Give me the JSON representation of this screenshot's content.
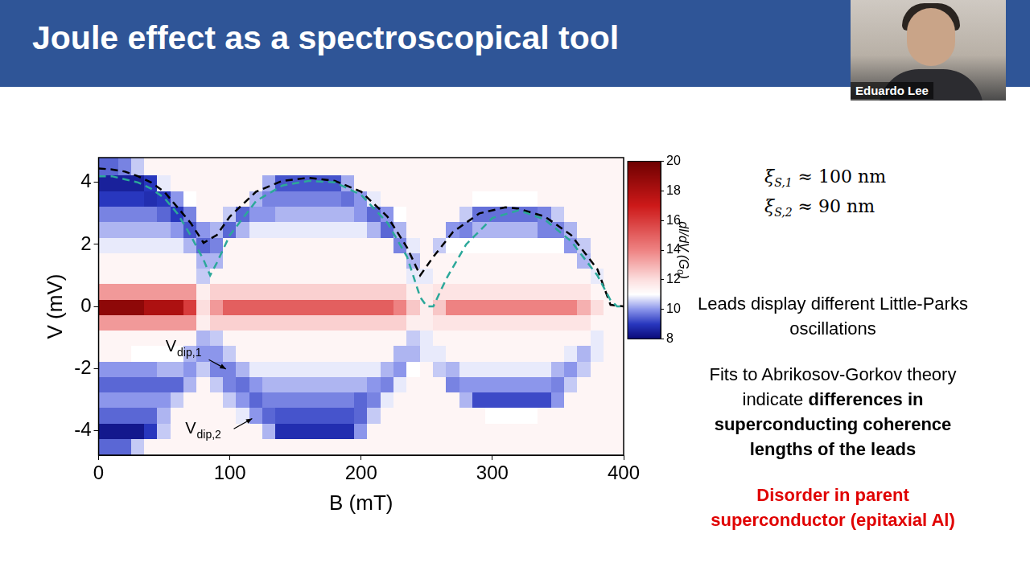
{
  "slide": {
    "title": "Joule effect as a spectroscopical tool",
    "speaker": "Eduardo Lee",
    "coherence_lengths": [
      {
        "symbol": "ξ",
        "subscript": "S,1",
        "relation": "≈",
        "value": 100,
        "unit": "nm"
      },
      {
        "symbol": "ξ",
        "subscript": "S,2",
        "relation": "≈",
        "value": 90,
        "unit": "nm"
      }
    ],
    "paragraphs": [
      [
        {
          "text": "Leads display different Little-Parks oscillations",
          "bold": false
        }
      ],
      [
        {
          "text": "Fits to Abrikosov-Gorkov theory indicate ",
          "bold": false
        },
        {
          "text": "differences in superconducting coherence lengths of the leads",
          "bold": true
        }
      ],
      [
        {
          "text": "Disorder in parent superconductor (epitaxial Al)",
          "bold": true,
          "color": "#e00000"
        }
      ]
    ]
  },
  "chart_data": {
    "type": "heatmap",
    "x_label": "B (mT)",
    "y_label": "V (mV)",
    "xlim": [
      0,
      400
    ],
    "xticks": [
      0,
      100,
      200,
      300,
      400
    ],
    "ylim": [
      -4.8,
      4.8
    ],
    "yticks": [
      -4,
      -2,
      0,
      2,
      4
    ],
    "grid": false,
    "legend": false,
    "annotations": [
      {
        "text": "V",
        "subscript": "dip,1"
      },
      {
        "text": "V",
        "subscript": "dip,2"
      }
    ],
    "series": [
      {
        "type": "line",
        "color": "#2ca89a",
        "line_style": "dashed",
        "x": [
          0,
          10,
          20,
          30,
          40,
          50,
          60,
          70,
          80,
          85,
          90,
          100,
          120,
          140,
          160,
          180,
          200,
          220,
          235,
          245,
          250,
          255,
          265,
          280,
          300,
          320,
          340,
          360,
          380,
          390,
          395,
          400
        ],
        "values": [
          4.2,
          4.2,
          4.1,
          4.0,
          3.8,
          3.5,
          3.0,
          2.3,
          1.5,
          1.0,
          1.4,
          2.3,
          3.4,
          3.9,
          4.05,
          4.0,
          3.6,
          2.7,
          1.6,
          0.3,
          0,
          0,
          0.9,
          2.0,
          2.85,
          3.1,
          2.8,
          2.1,
          1.0,
          0.2,
          0,
          0
        ]
      },
      {
        "type": "line",
        "color": "#000000",
        "line_style": "dashed",
        "x": [
          0,
          10,
          20,
          30,
          40,
          50,
          60,
          70,
          80,
          90,
          100,
          120,
          140,
          160,
          180,
          200,
          220,
          235,
          245,
          255,
          270,
          290,
          310,
          320,
          340,
          360,
          380,
          390,
          400
        ],
        "values": [
          4.45,
          4.42,
          4.35,
          4.2,
          4.0,
          3.7,
          3.2,
          2.7,
          2.05,
          2.3,
          2.9,
          3.7,
          4.05,
          4.15,
          4.05,
          3.7,
          2.9,
          1.9,
          1.0,
          1.6,
          2.4,
          3.0,
          3.2,
          3.15,
          2.9,
          2.3,
          1.2,
          0.05,
          0
        ]
      }
    ],
    "heatmap": {
      "x": [
        0,
        10,
        20,
        30,
        40,
        50,
        60,
        70,
        80,
        90,
        100,
        110,
        120,
        130,
        140,
        150,
        160,
        170,
        180,
        190,
        200,
        210,
        220,
        230,
        240,
        250,
        260,
        270,
        280,
        290,
        300,
        310,
        320,
        330,
        340,
        350,
        360,
        370,
        380,
        390,
        400
      ],
      "y": [
        -4.5,
        -4.0,
        -3.5,
        -3.0,
        -2.5,
        -2.0,
        -1.5,
        -1.0,
        -0.5,
        0,
        0.5,
        1.0,
        1.5,
        2.0,
        2.5,
        3.0,
        3.5,
        4.0,
        4.5
      ],
      "z": [
        [
          9.5,
          9.5,
          9.5,
          10.5,
          11.3,
          11.3,
          11.3,
          11.3,
          11.3,
          11.3,
          11.3,
          11.3,
          11.3,
          11.3,
          11.3,
          11.3,
          11.3,
          11.3,
          11.3,
          11.3,
          11.3,
          11.3,
          11.3,
          11.3,
          11.3,
          11.3,
          11.3,
          11.3,
          11.3,
          11.3,
          11.3,
          11.3,
          11.3,
          11.3,
          11.3,
          11.3,
          11.3,
          11.3,
          11.3,
          11.3,
          11.3
        ],
        [
          8.3,
          8.3,
          8.3,
          8.3,
          9.0,
          10.5,
          11.3,
          11.3,
          11.3,
          11.3,
          11.3,
          11.3,
          11.3,
          10.3,
          8.8,
          8.8,
          8.8,
          8.8,
          8.8,
          8.8,
          10.0,
          11.3,
          11.3,
          11.3,
          11.3,
          11.3,
          11.3,
          11.3,
          11.3,
          11.3,
          11.3,
          11.3,
          11.3,
          11.3,
          11.3,
          11.3,
          11.3,
          11.3,
          11.3,
          11.3,
          11.3
        ],
        [
          9.5,
          9.5,
          9.5,
          9.5,
          9.5,
          10.3,
          11.3,
          11.3,
          11.3,
          11.3,
          11.3,
          10.8,
          10.0,
          9.5,
          9.3,
          9.3,
          9.3,
          9.3,
          9.3,
          9.3,
          9.5,
          10.5,
          11.3,
          11.3,
          11.3,
          11.3,
          11.3,
          11.3,
          11.3,
          11.3,
          11.0,
          11.0,
          11.0,
          11.0,
          11.3,
          11.3,
          11.3,
          11.3,
          11.3,
          11.3,
          11.3
        ],
        [
          10.0,
          10.0,
          10.0,
          10.0,
          10.0,
          10.0,
          10.5,
          11.3,
          11.3,
          11.3,
          10.5,
          10.0,
          9.5,
          9.8,
          9.8,
          9.8,
          9.8,
          9.8,
          9.8,
          9.8,
          9.5,
          9.8,
          10.8,
          11.3,
          11.3,
          11.3,
          11.3,
          11.3,
          10.3,
          9.2,
          9.2,
          9.2,
          9.2,
          9.2,
          9.2,
          10.0,
          11.3,
          11.3,
          11.3,
          11.3,
          11.3
        ],
        [
          9.5,
          9.5,
          9.5,
          9.5,
          9.5,
          9.5,
          9.5,
          10.3,
          11.3,
          10.5,
          9.8,
          9.6,
          10.0,
          10.3,
          10.3,
          10.3,
          10.3,
          10.3,
          10.3,
          10.3,
          10.3,
          10.0,
          9.8,
          10.8,
          11.3,
          11.3,
          11.3,
          9.8,
          10.0,
          10.0,
          10.0,
          10.0,
          10.0,
          10.0,
          10.0,
          9.8,
          10.5,
          11.3,
          11.3,
          11.3,
          11.3
        ],
        [
          10.0,
          10.0,
          10.0,
          10.0,
          10.0,
          10.3,
          10.3,
          10.0,
          10.5,
          9.8,
          9.8,
          10.3,
          10.8,
          10.8,
          10.8,
          10.8,
          10.8,
          10.8,
          10.8,
          10.8,
          10.8,
          10.8,
          10.3,
          10.0,
          11.0,
          11.3,
          10.5,
          10.3,
          10.8,
          10.8,
          10.8,
          10.8,
          10.8,
          10.8,
          10.8,
          10.3,
          10.0,
          10.5,
          11.3,
          11.3,
          11.3
        ],
        [
          11.3,
          11.3,
          11.3,
          11.0,
          11.0,
          11.0,
          11.0,
          10.3,
          10.0,
          10.0,
          10.5,
          11.3,
          11.3,
          11.3,
          11.3,
          11.3,
          11.3,
          11.3,
          11.3,
          11.3,
          11.3,
          11.3,
          11.3,
          10.3,
          10.3,
          10.8,
          10.8,
          11.3,
          11.3,
          11.3,
          11.3,
          11.3,
          11.3,
          11.3,
          11.3,
          11.3,
          10.8,
          10.3,
          10.8,
          11.3,
          11.3
        ],
        [
          11.3,
          11.3,
          11.3,
          11.3,
          11.3,
          11.3,
          11.3,
          11.3,
          10.3,
          10.5,
          11.3,
          11.3,
          11.3,
          11.3,
          11.3,
          11.3,
          11.3,
          11.3,
          11.3,
          11.3,
          11.3,
          11.3,
          11.3,
          11.3,
          10.5,
          10.8,
          11.3,
          11.3,
          11.3,
          11.3,
          11.3,
          11.3,
          11.3,
          11.3,
          11.3,
          11.3,
          11.3,
          11.3,
          10.8,
          11.3,
          11.3
        ],
        [
          13.5,
          13.5,
          13.5,
          13.5,
          13.5,
          13.5,
          13.5,
          13.5,
          11.5,
          12.3,
          12.3,
          12.3,
          12.3,
          12.3,
          12.3,
          12.3,
          12.3,
          12.3,
          12.3,
          12.3,
          12.3,
          12.3,
          12.3,
          12.3,
          11.5,
          11.5,
          11.8,
          11.8,
          11.8,
          11.8,
          11.8,
          11.8,
          11.8,
          11.8,
          11.8,
          11.8,
          11.8,
          11.8,
          11.3,
          11.3,
          11.3
        ],
        [
          19,
          19,
          19,
          19,
          18,
          18,
          18,
          16,
          12,
          13.5,
          15,
          15,
          15,
          15,
          15,
          15,
          15,
          15,
          15,
          15,
          15,
          15,
          15,
          14,
          12.5,
          11.5,
          12.5,
          14,
          14,
          14,
          14,
          14,
          14,
          14,
          14,
          14,
          14,
          13,
          12,
          11.3,
          11.3
        ],
        [
          13.5,
          13.5,
          13.5,
          13.5,
          13.5,
          13.5,
          13.5,
          13.5,
          11.5,
          12.3,
          12.3,
          12.3,
          12.3,
          12.3,
          12.3,
          12.3,
          12.3,
          12.3,
          12.3,
          12.3,
          12.3,
          12.3,
          12.3,
          12.3,
          11.5,
          11.5,
          11.8,
          11.8,
          11.8,
          11.8,
          11.8,
          11.8,
          11.8,
          11.8,
          11.8,
          11.8,
          11.8,
          11.8,
          11.3,
          11.3,
          11.3
        ],
        [
          11.3,
          11.3,
          11.3,
          11.3,
          11.3,
          11.3,
          11.3,
          11.3,
          10.5,
          11.3,
          11.3,
          11.3,
          11.3,
          11.3,
          11.3,
          11.3,
          11.3,
          11.3,
          11.3,
          11.3,
          11.3,
          11.3,
          11.3,
          11.3,
          10.8,
          10.8,
          11.3,
          11.3,
          11.3,
          11.3,
          11.3,
          11.3,
          11.3,
          11.3,
          11.3,
          11.3,
          11.3,
          11.3,
          10.8,
          11.3,
          11.3
        ],
        [
          11.3,
          11.3,
          11.3,
          11.3,
          11.3,
          11.3,
          11.3,
          11.3,
          10.3,
          10.3,
          11.3,
          11.3,
          11.3,
          11.3,
          11.3,
          11.3,
          11.3,
          11.3,
          11.3,
          11.3,
          11.3,
          11.3,
          11.3,
          11.3,
          10.3,
          11.3,
          11.3,
          11.3,
          11.3,
          11.3,
          11.3,
          11.3,
          11.3,
          11.3,
          11.3,
          11.3,
          11.3,
          10.3,
          11.3,
          11.3,
          11.3
        ],
        [
          10.8,
          10.8,
          10.8,
          10.8,
          10.8,
          10.8,
          10.8,
          10.3,
          9.5,
          9.8,
          11.3,
          11.3,
          11.3,
          11.3,
          11.3,
          11.3,
          11.3,
          11.3,
          11.3,
          11.3,
          11.3,
          11.3,
          11.3,
          9.8,
          10.8,
          11.3,
          10.5,
          11.0,
          11.0,
          11.0,
          11.0,
          11.0,
          11.0,
          11.0,
          11.0,
          11.0,
          10.0,
          10.5,
          11.3,
          11.3,
          11.3
        ],
        [
          10.3,
          10.3,
          10.3,
          10.3,
          10.3,
          10.3,
          10.0,
          9.3,
          10.0,
          10.3,
          9.5,
          10.3,
          10.8,
          10.8,
          10.8,
          10.8,
          10.8,
          10.8,
          10.8,
          10.8,
          10.8,
          10.3,
          9.5,
          10.3,
          11.3,
          11.3,
          11.3,
          10.0,
          9.8,
          10.3,
          10.3,
          10.3,
          10.3,
          10.3,
          9.8,
          9.8,
          10.3,
          11.3,
          11.3,
          11.3,
          11.3
        ],
        [
          9.8,
          9.8,
          9.8,
          9.8,
          9.8,
          9.5,
          9.0,
          9.8,
          11.3,
          11.3,
          10.5,
          9.5,
          10.0,
          10.0,
          10.3,
          10.3,
          10.3,
          10.3,
          10.3,
          10.3,
          10.0,
          9.5,
          10.0,
          11.0,
          11.3,
          11.3,
          11.3,
          11.3,
          10.5,
          9.6,
          9.6,
          9.6,
          9.6,
          9.6,
          9.8,
          10.5,
          11.3,
          11.3,
          11.3,
          11.3,
          11.3
        ],
        [
          9.0,
          9.0,
          9.0,
          9.0,
          8.8,
          9.0,
          10.0,
          11.0,
          11.3,
          11.3,
          11.3,
          11.3,
          10.3,
          9.8,
          9.8,
          9.8,
          9.8,
          9.8,
          9.8,
          9.6,
          10.0,
          10.8,
          11.3,
          11.3,
          11.3,
          11.3,
          11.3,
          11.3,
          11.3,
          11.0,
          11.0,
          11.0,
          11.0,
          11.0,
          11.3,
          11.3,
          11.3,
          11.3,
          11.3,
          11.3,
          11.3
        ],
        [
          8.5,
          8.5,
          8.5,
          8.5,
          9.0,
          10.8,
          11.3,
          11.3,
          11.3,
          11.3,
          11.3,
          11.3,
          11.3,
          10.2,
          9.3,
          9.3,
          9.3,
          9.3,
          9.3,
          10.2,
          11.3,
          11.3,
          11.3,
          11.3,
          11.3,
          11.3,
          11.3,
          11.3,
          11.3,
          11.3,
          11.3,
          11.3,
          11.3,
          11.3,
          11.3,
          11.3,
          11.3,
          11.3,
          11.3,
          11.3,
          11.3
        ],
        [
          9.5,
          9.5,
          9.8,
          10.5,
          11.3,
          11.3,
          11.3,
          11.3,
          11.3,
          11.3,
          11.3,
          11.3,
          11.3,
          11.3,
          11.3,
          11.3,
          11.3,
          11.3,
          11.3,
          11.3,
          11.3,
          11.3,
          11.3,
          11.3,
          11.3,
          11.3,
          11.3,
          11.3,
          11.3,
          11.3,
          11.3,
          11.3,
          11.3,
          11.3,
          11.3,
          11.3,
          11.3,
          11.3,
          11.3,
          11.3,
          11.3
        ]
      ],
      "colorbar": {
        "label": "dI/dV (G₀)",
        "range": [
          8,
          20
        ],
        "ticks": [
          8,
          10,
          12,
          14,
          16,
          18,
          20
        ]
      }
    }
  }
}
